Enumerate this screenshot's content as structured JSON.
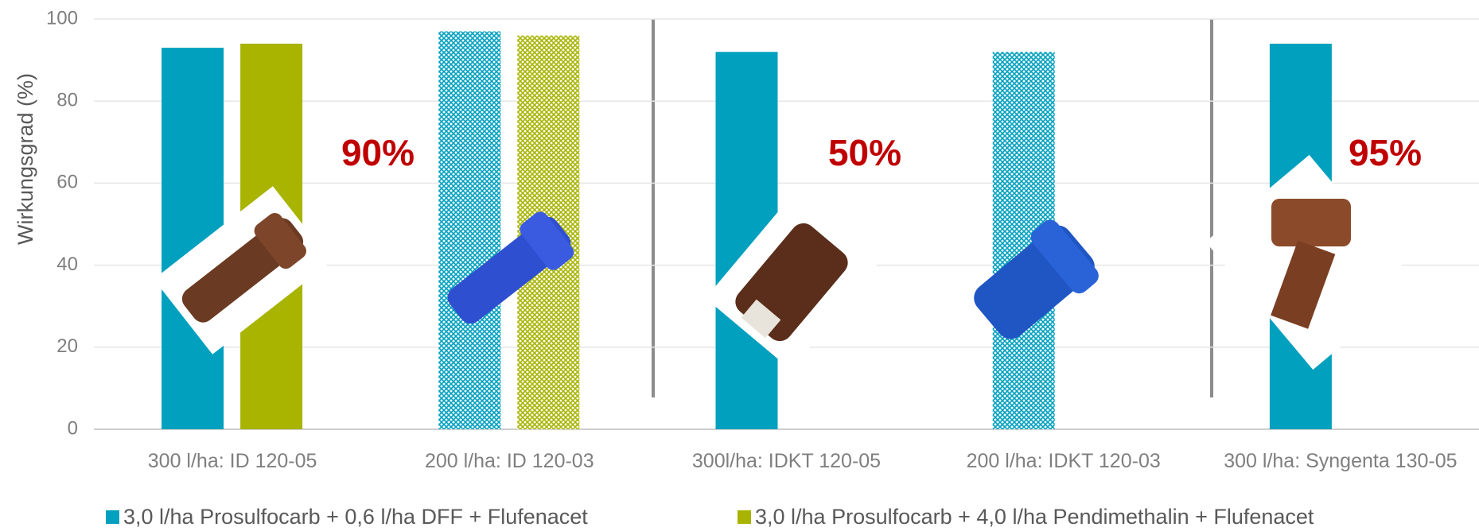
{
  "chart_data": {
    "type": "bar",
    "y_label": "Wirkungsgrad (%)",
    "categories": [
      "300 l/ha: ID 120-05",
      "200 l/ha: ID 120-03",
      "300l/ha: IDKT 120-05",
      "200 l/ha: IDKT 120-03",
      "300 l/ha: Syngenta 130-05"
    ],
    "patterned": [
      false,
      true,
      false,
      true,
      false
    ],
    "series": [
      {
        "name": "3,0 l/ha Prosulfocarb + 0,6 l/ha DFF + Flufenacet",
        "color": "#00a0be",
        "values": [
          93,
          97,
          92,
          92,
          94
        ]
      },
      {
        "name": "3,0 l/ha Prosulfocarb + 4,0 l/ha Pendimethalin + Flufenacet",
        "color": "#a8b400",
        "values": [
          94,
          96,
          null,
          null,
          null
        ]
      }
    ],
    "annotations": [
      "90%",
      "50%",
      "95%"
    ],
    "ylim": [
      0,
      100
    ],
    "yticks": [
      0,
      20,
      40,
      60,
      80,
      100
    ],
    "grid": true,
    "legend": "bottom"
  }
}
